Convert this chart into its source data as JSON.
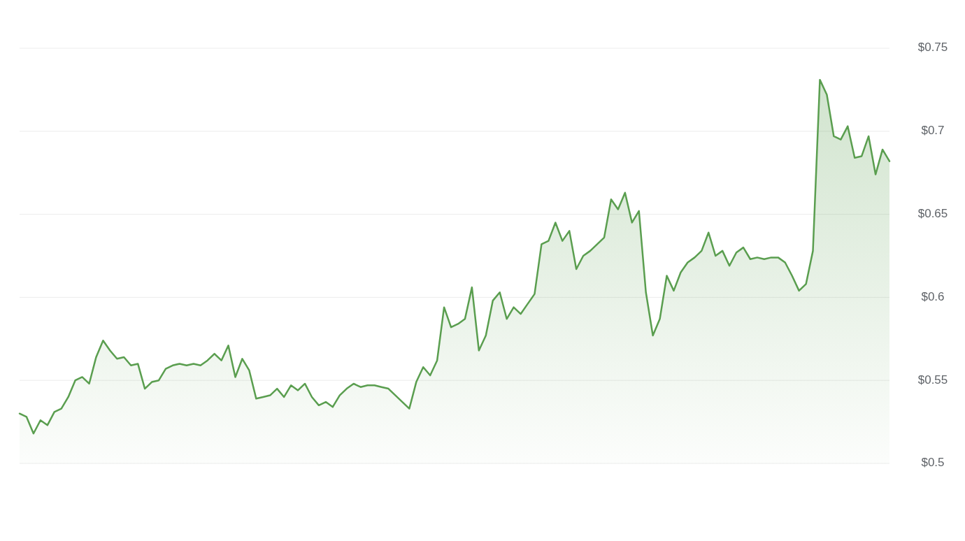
{
  "chart_data": {
    "type": "area",
    "categories": [
      null,
      null,
      null,
      null,
      null,
      null,
      null,
      null,
      null,
      null,
      null,
      null,
      null,
      null,
      null,
      null,
      null,
      null,
      null,
      null,
      null,
      null,
      null,
      null,
      null,
      null,
      null,
      null,
      null,
      null,
      null,
      null,
      null,
      null,
      null,
      null,
      null,
      null,
      null,
      null,
      null,
      null,
      null,
      null,
      null,
      null,
      null,
      null,
      null,
      null,
      null,
      null,
      null,
      null,
      null,
      null,
      null,
      null,
      null,
      null,
      null,
      null,
      null,
      null,
      null,
      null,
      null,
      null,
      null,
      null,
      null,
      null,
      null,
      null,
      null,
      null,
      null,
      null,
      null,
      null,
      null,
      null,
      null,
      null,
      null,
      null,
      null,
      null,
      null,
      null,
      null,
      null,
      null,
      null,
      null,
      null,
      null,
      null,
      null,
      null,
      null,
      null,
      null,
      null,
      null,
      null,
      null,
      null,
      null,
      null,
      null,
      null,
      null,
      null,
      null,
      null,
      null,
      null,
      null,
      null,
      null,
      null,
      null,
      null,
      null,
      null
    ],
    "series": [
      {
        "color": "#5a9e4f",
        "values": [
          0.53,
          0.528,
          0.518,
          0.526,
          0.523,
          0.531,
          0.533,
          0.54,
          0.55,
          0.552,
          0.548,
          0.564,
          0.574,
          0.568,
          0.563,
          0.564,
          0.559,
          0.56,
          0.545,
          0.549,
          0.55,
          0.557,
          0.559,
          0.56,
          0.559,
          0.56,
          0.559,
          0.562,
          0.566,
          0.562,
          0.571,
          0.552,
          0.563,
          0.556,
          0.539,
          0.54,
          0.541,
          0.545,
          0.54,
          0.547,
          0.544,
          0.548,
          0.54,
          0.535,
          0.537,
          0.534,
          0.541,
          0.545,
          0.548,
          0.546,
          0.547,
          0.547,
          0.546,
          0.545,
          0.541,
          0.537,
          0.533,
          0.549,
          0.558,
          0.553,
          0.562,
          0.594,
          0.582,
          0.584,
          0.587,
          0.606,
          0.568,
          0.577,
          0.598,
          0.603,
          0.587,
          0.594,
          0.59,
          0.596,
          0.602,
          0.632,
          0.634,
          0.645,
          0.634,
          0.64,
          0.617,
          0.625,
          0.628,
          0.632,
          0.636,
          0.659,
          0.653,
          0.663,
          0.645,
          0.652,
          0.603,
          0.577,
          0.587,
          0.613,
          0.604,
          0.615,
          0.621,
          0.624,
          0.628,
          0.639,
          0.625,
          0.628,
          0.619,
          0.627,
          0.63,
          0.623,
          0.624,
          0.623,
          0.624,
          0.624,
          0.621,
          0.613,
          0.604,
          0.608,
          0.628,
          0.731,
          0.722,
          0.697,
          0.695,
          0.703,
          0.684,
          0.685,
          0.697,
          0.674,
          0.689,
          0.682
        ]
      }
    ],
    "ylim": [
      0.5,
      0.75
    ],
    "yticks": [
      {
        "value": 0.5,
        "label": "$0.5"
      },
      {
        "value": 0.55,
        "label": "$0.55"
      },
      {
        "value": 0.6,
        "label": "$0.6"
      },
      {
        "value": 0.65,
        "label": "$0.65"
      },
      {
        "value": 0.7,
        "label": "$0.7"
      },
      {
        "value": 0.75,
        "label": "$0.75"
      }
    ],
    "grid": "y",
    "tick_labels": "y"
  }
}
